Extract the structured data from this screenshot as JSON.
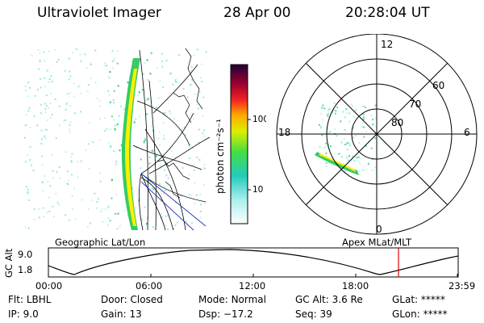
{
  "header": {
    "instrument": "Ultraviolet Imager",
    "date": "28 Apr 00",
    "time": "20:28:04 UT"
  },
  "colorbar": {
    "label": "photon cm⁻²s⁻¹",
    "ticks": [
      "100",
      "10"
    ]
  },
  "polar": {
    "mlt_labels": {
      "top": "12",
      "left": "18",
      "right": "6",
      "bottom": "0"
    },
    "lat_labels": [
      "60",
      "70",
      "80"
    ]
  },
  "map_labels": {
    "geographic": "Geographic Lat/Lon",
    "apex": "Apex MLat/MLT"
  },
  "altitude_plot": {
    "ylabel": "GC Alt",
    "yticks": [
      "9.0",
      "1.8"
    ],
    "xticks": [
      "00:00",
      "06:00",
      "12:00",
      "18:00",
      "23:59"
    ]
  },
  "info": {
    "filter": {
      "label": "Flt:",
      "value": "LBHL"
    },
    "ip": {
      "label": "IP:",
      "value": "9.0"
    },
    "door": {
      "label": "Door:",
      "value": "Closed"
    },
    "gain": {
      "label": "Gain:",
      "value": "13"
    },
    "mode": {
      "label": "Mode:",
      "value": "Normal"
    },
    "dsp": {
      "label": "Dsp:",
      "value": "−17.2"
    },
    "gc_alt": {
      "label": "GC Alt:",
      "value": "3.6 Re"
    },
    "seq": {
      "label": "Seq:",
      "value": "39"
    },
    "glat": {
      "label": "GLat:",
      "value": "*****"
    },
    "glon": {
      "label": "GLon:",
      "value": "*****"
    }
  },
  "colors": {
    "marker": "#dd0000",
    "aurora_bright": "#ffee00",
    "aurora_mid": "#22cc66",
    "aurora_faint": "#99e6e6"
  }
}
